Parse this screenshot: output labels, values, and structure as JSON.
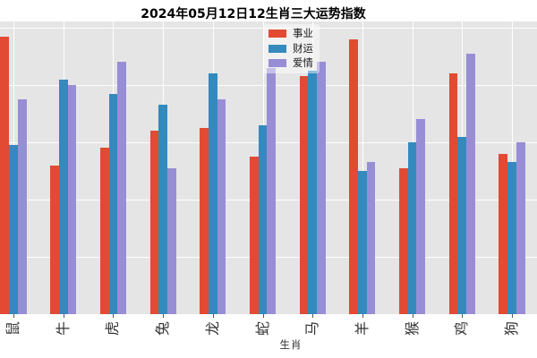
{
  "title": "2024年05月12日12生肖三大运势指数",
  "colors": {
    "figure_bg": "#ffffff",
    "plot_bg": "#e5e5e5",
    "grid": "#ffffff",
    "tick": "#555555",
    "career_red": "#e24a33",
    "wealth_blue": "#348abd",
    "love_purple": "#988ed5"
  },
  "chart_data": {
    "type": "bar",
    "title": "2024年05月12日12生肖三大运势指数",
    "xlabel": "生肖",
    "ylabel": "",
    "categories": [
      "鼠",
      "牛",
      "虎",
      "兔",
      "龙",
      "蛇",
      "马",
      "羊",
      "猴",
      "鸡",
      "狗"
    ],
    "series": [
      {
        "name": "事业",
        "color": "#e24a33",
        "values": [
          97,
          52,
          58,
          64,
          65,
          55,
          83,
          96,
          51,
          84,
          56
        ]
      },
      {
        "name": "财运",
        "color": "#348abd",
        "values": [
          59,
          82,
          77,
          73,
          84,
          66,
          85,
          50,
          60,
          62,
          53
        ]
      },
      {
        "name": "爱情",
        "color": "#988ed5",
        "values": [
          75,
          80,
          88,
          51,
          75,
          86,
          88,
          53,
          68,
          91,
          60
        ]
      }
    ],
    "ylim": [
      0,
      102
    ],
    "y_gridlines": [
      20,
      40,
      60,
      80,
      100
    ],
    "grid": "on",
    "legend_position": "upper center",
    "note_visible_categories": "12th zodiac column is cropped beyond the right edge of the image"
  }
}
